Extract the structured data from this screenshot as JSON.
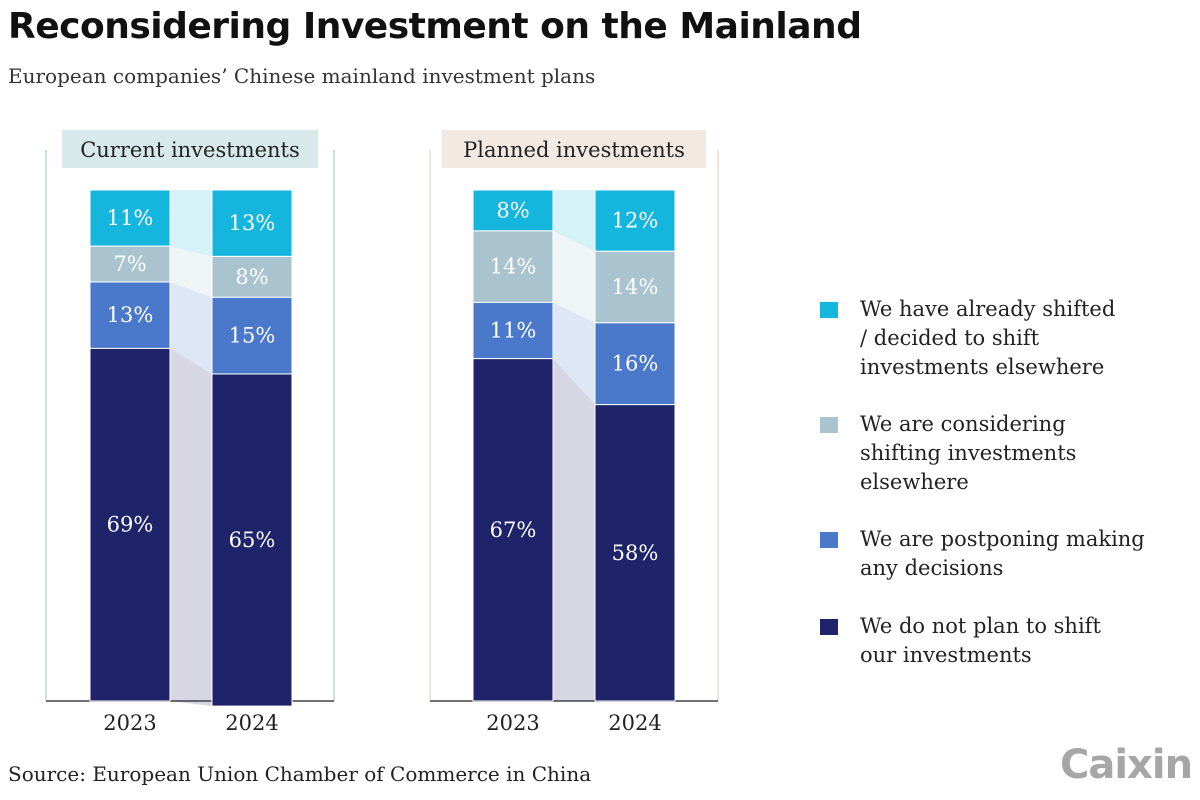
{
  "title": "Reconsidering Investment on the Mainland",
  "subtitle": "European companies’ Chinese mainland investment plans",
  "source": "Source: European Union Chamber of Commerce in China",
  "logo_text": "Caixin",
  "colors": {
    "already_shifted": "#15b6dd",
    "considering": "#a9c4cf",
    "postponing": "#4a79cc",
    "not_plan": "#1f246a",
    "current_header_bg": "#d7e9eb",
    "planned_header_bg": "#f3e9e3",
    "current_frame": "#b9d9de",
    "planned_frame": "#e9dbd3"
  },
  "legend": [
    {
      "key": "already_shifted",
      "label": "We have already shifted / decided to shift investments elsewhere"
    },
    {
      "key": "considering",
      "label": "We are considering shifting investments elsewhere"
    },
    {
      "key": "postponing",
      "label": "We are postponing making any decisions"
    },
    {
      "key": "not_plan",
      "label": "We do not plan to shift our investments"
    }
  ],
  "chart_data": [
    {
      "type": "bar",
      "stacked": true,
      "title": "Current investments",
      "categories": [
        "2023",
        "2024"
      ],
      "ylim": [
        0,
        100
      ],
      "series": [
        {
          "key": "already_shifted",
          "name": "We have already shifted / decided to shift investments elsewhere",
          "values": [
            11,
            13
          ],
          "labels": [
            "11%",
            "13%"
          ]
        },
        {
          "key": "considering",
          "name": "We are considering shifting investments elsewhere",
          "values": [
            7,
            8
          ],
          "labels": [
            "7%",
            "8%"
          ]
        },
        {
          "key": "postponing",
          "name": "We are postponing making any decisions",
          "values": [
            13,
            15
          ],
          "labels": [
            "13%",
            "15%"
          ]
        },
        {
          "key": "not_plan",
          "name": "We do not plan to shift our investments",
          "values": [
            69,
            65
          ],
          "labels": [
            "69%",
            "65%"
          ]
        }
      ]
    },
    {
      "type": "bar",
      "stacked": true,
      "title": "Planned investments",
      "categories": [
        "2023",
        "2024"
      ],
      "ylim": [
        0,
        100
      ],
      "series": [
        {
          "key": "already_shifted",
          "name": "We have already shifted / decided to shift investments elsewhere",
          "values": [
            8,
            12
          ],
          "labels": [
            "8%",
            "12%"
          ]
        },
        {
          "key": "considering",
          "name": "We are considering shifting investments elsewhere",
          "values": [
            14,
            14
          ],
          "labels": [
            "14%",
            "14%"
          ]
        },
        {
          "key": "postponing",
          "name": "We are postponing making any decisions",
          "values": [
            11,
            16
          ],
          "labels": [
            "11%",
            "16%"
          ]
        },
        {
          "key": "not_plan",
          "name": "We do not plan to shift our investments",
          "values": [
            67,
            58
          ],
          "labels": [
            "67%",
            "58%"
          ]
        }
      ]
    }
  ]
}
